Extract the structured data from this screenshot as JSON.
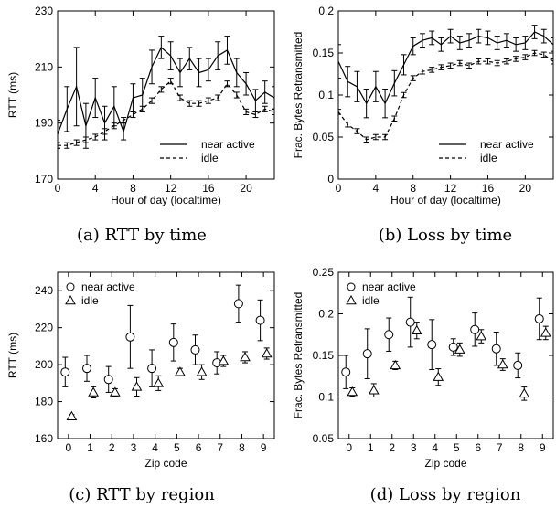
{
  "chart_data": [
    {
      "type": "line",
      "caption": "(a) RTT by time",
      "xlabel": "Hour of day (localtime)",
      "ylabel": "RTT (ms)",
      "xlim": [
        0,
        23
      ],
      "ylim": [
        170,
        230
      ],
      "xticks": [
        0,
        4,
        8,
        12,
        16,
        20
      ],
      "yticks": [
        170,
        190,
        210,
        230
      ],
      "legend": "bottom-right",
      "series": [
        {
          "name": "near active",
          "style": "solid",
          "x": [
            0,
            1,
            2,
            3,
            4,
            5,
            6,
            7,
            8,
            9,
            10,
            11,
            12,
            13,
            14,
            15,
            16,
            17,
            18,
            19,
            20,
            21,
            22,
            23
          ],
          "y": [
            186,
            195,
            203,
            189,
            199,
            190,
            196,
            187,
            199,
            200,
            210,
            217,
            214,
            208,
            213,
            208,
            209,
            214,
            216,
            208,
            204,
            198,
            201,
            199
          ],
          "err": [
            5,
            8,
            14,
            8,
            7,
            6,
            7,
            3,
            5,
            6,
            6,
            4,
            5,
            5,
            4,
            5,
            4,
            5,
            5,
            5,
            4,
            4,
            4,
            4
          ]
        },
        {
          "name": "idle",
          "style": "dashed",
          "x": [
            0,
            1,
            2,
            3,
            4,
            5,
            6,
            7,
            8,
            9,
            10,
            11,
            12,
            13,
            14,
            15,
            16,
            17,
            18,
            19,
            20,
            21,
            22,
            23
          ],
          "y": [
            182,
            182,
            183,
            184,
            185,
            187,
            189,
            191,
            193,
            195,
            198,
            202,
            205,
            199,
            197,
            197,
            198,
            199,
            204,
            200,
            194,
            193,
            195,
            194
          ],
          "err": [
            1,
            1,
            1,
            1,
            1,
            1,
            1,
            1,
            1,
            1,
            1,
            1,
            1,
            1,
            1,
            1,
            1,
            1,
            1,
            1,
            1,
            1,
            1,
            1
          ]
        }
      ]
    },
    {
      "type": "line",
      "caption": "(b) Loss by time",
      "xlabel": "Hour of day (localtime)",
      "ylabel": "Frac. Bytes Retransmitted",
      "xlim": [
        0,
        23
      ],
      "ylim": [
        0,
        0.2
      ],
      "xticks": [
        0,
        4,
        8,
        12,
        16,
        20
      ],
      "yticks": [
        0,
        0.05,
        0.1,
        0.15,
        0.2
      ],
      "yticklabels": [
        "0",
        "0.05",
        "0.1",
        "0.15",
        "0.2"
      ],
      "legend": "bottom-right",
      "series": [
        {
          "name": "near active",
          "style": "solid",
          "x": [
            0,
            1,
            2,
            3,
            4,
            5,
            6,
            7,
            8,
            9,
            10,
            11,
            12,
            13,
            14,
            15,
            16,
            17,
            18,
            19,
            20,
            21,
            22,
            23
          ],
          "y": [
            0.14,
            0.116,
            0.11,
            0.09,
            0.11,
            0.09,
            0.114,
            0.136,
            0.158,
            0.165,
            0.168,
            0.16,
            0.17,
            0.162,
            0.165,
            0.17,
            0.168,
            0.162,
            0.165,
            0.16,
            0.162,
            0.175,
            0.17,
            0.16
          ],
          "err": [
            0.02,
            0.018,
            0.018,
            0.017,
            0.018,
            0.017,
            0.015,
            0.012,
            0.01,
            0.008,
            0.008,
            0.008,
            0.008,
            0.008,
            0.008,
            0.008,
            0.008,
            0.008,
            0.008,
            0.008,
            0.008,
            0.008,
            0.008,
            0.008
          ]
        },
        {
          "name": "idle",
          "style": "dashed",
          "x": [
            0,
            1,
            2,
            3,
            4,
            5,
            6,
            7,
            8,
            9,
            10,
            11,
            12,
            13,
            14,
            15,
            16,
            17,
            18,
            19,
            20,
            21,
            22,
            23
          ],
          "y": [
            0.08,
            0.065,
            0.057,
            0.047,
            0.05,
            0.05,
            0.072,
            0.1,
            0.12,
            0.128,
            0.13,
            0.133,
            0.135,
            0.138,
            0.135,
            0.14,
            0.14,
            0.138,
            0.14,
            0.143,
            0.145,
            0.15,
            0.148,
            0.14
          ],
          "err": [
            0.003,
            0.003,
            0.003,
            0.003,
            0.003,
            0.003,
            0.003,
            0.003,
            0.003,
            0.003,
            0.003,
            0.003,
            0.003,
            0.003,
            0.003,
            0.003,
            0.003,
            0.003,
            0.003,
            0.003,
            0.003,
            0.003,
            0.003,
            0.003
          ]
        }
      ]
    },
    {
      "type": "scatter",
      "caption": "(c) RTT by region",
      "xlabel": "Zip code",
      "ylabel": "RTT (ms)",
      "xlim": [
        -0.5,
        9.5
      ],
      "ylim": [
        160,
        250
      ],
      "xticks": [
        0,
        1,
        2,
        3,
        4,
        5,
        6,
        7,
        8,
        9
      ],
      "yticks": [
        160,
        180,
        200,
        220,
        240
      ],
      "legend": "top-left",
      "series": [
        {
          "name": "near active",
          "marker": "circle",
          "x": [
            -0.15,
            0.85,
            1.85,
            2.85,
            3.85,
            4.85,
            5.85,
            6.85,
            7.85,
            8.85
          ],
          "y": [
            196,
            198,
            192,
            215,
            198,
            212,
            208,
            201,
            233,
            224
          ],
          "err": [
            8,
            7,
            7,
            17,
            10,
            10,
            8,
            6,
            10,
            11
          ]
        },
        {
          "name": "idle",
          "marker": "triangle",
          "x": [
            0.15,
            1.15,
            2.15,
            3.15,
            4.15,
            5.15,
            6.15,
            7.15,
            8.15,
            9.15
          ],
          "y": [
            172,
            185,
            185,
            188,
            190,
            196,
            196,
            202,
            204,
            206
          ],
          "err": [
            1,
            3,
            2,
            5,
            4,
            2,
            4,
            3,
            3,
            3
          ]
        }
      ]
    },
    {
      "type": "scatter",
      "caption": "(d) Loss by region",
      "xlabel": "Zip code",
      "ylabel": "Frac. Bytes Retransmitted",
      "xlim": [
        -0.5,
        9.5
      ],
      "ylim": [
        0.05,
        0.25
      ],
      "xticks": [
        0,
        1,
        2,
        3,
        4,
        5,
        6,
        7,
        8,
        9
      ],
      "yticks": [
        0.05,
        0.1,
        0.15,
        0.2,
        0.25
      ],
      "yticklabels": [
        "0.05",
        "0.1",
        "0.15",
        "0.2",
        "0.25"
      ],
      "legend": "top-left",
      "series": [
        {
          "name": "near active",
          "marker": "circle",
          "x": [
            -0.15,
            0.85,
            1.85,
            2.85,
            3.85,
            4.85,
            5.85,
            6.85,
            7.85,
            8.85
          ],
          "y": [
            0.13,
            0.152,
            0.175,
            0.19,
            0.163,
            0.16,
            0.181,
            0.158,
            0.138,
            0.194
          ],
          "err": [
            0.02,
            0.03,
            0.02,
            0.03,
            0.03,
            0.01,
            0.02,
            0.02,
            0.015,
            0.025
          ]
        },
        {
          "name": "idle",
          "marker": "triangle",
          "x": [
            0.15,
            1.15,
            2.15,
            3.15,
            4.15,
            5.15,
            6.15,
            7.15,
            8.15,
            9.15
          ],
          "y": [
            0.106,
            0.108,
            0.138,
            0.18,
            0.124,
            0.157,
            0.173,
            0.139,
            0.104,
            0.177
          ],
          "err": [
            0.005,
            0.008,
            0.005,
            0.01,
            0.01,
            0.008,
            0.008,
            0.007,
            0.008,
            0.008
          ]
        }
      ]
    }
  ]
}
